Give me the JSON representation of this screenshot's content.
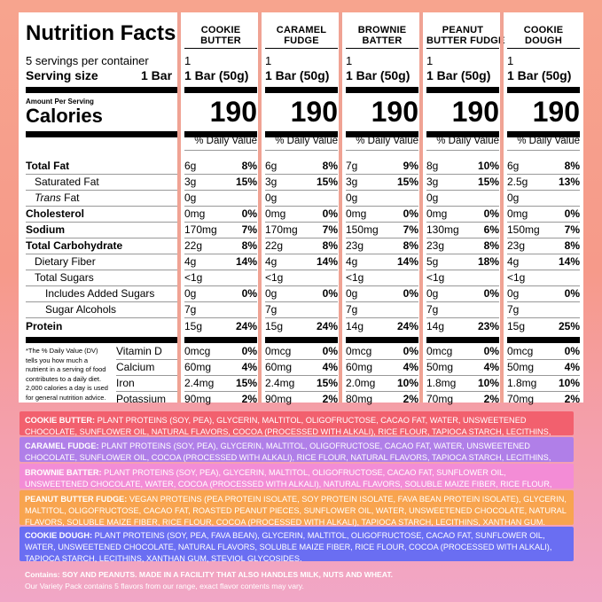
{
  "title": "Nutrition Facts",
  "servings_per_container": "5 servings per container",
  "serving_size_label": "Serving size",
  "serving_size_value": "1 Bar",
  "amount_per_serving": "Amount Per Serving",
  "calories_label": "Calories",
  "pct_daily_value": "% Daily Value",
  "footnote": [
    "*The % Daily Value (DV)",
    "tells you how much a",
    "nutrient in a serving of food",
    "contributes to a daily diet.",
    "2,000 calories a day is used",
    "for general nutrition advice."
  ],
  "rows": [
    {
      "label": "Total Fat",
      "bold": true
    },
    {
      "label": "Saturated Fat",
      "bold": false
    },
    {
      "label": "Trans Fat",
      "bold": false
    },
    {
      "label": "Cholesterol",
      "bold": true
    },
    {
      "label": "Sodium",
      "bold": true
    },
    {
      "label": "Total Carbohydrate",
      "bold": true
    },
    {
      "label": "Dietary Fiber",
      "bold": false
    },
    {
      "label": "Total Sugars",
      "bold": false
    },
    {
      "label": "Includes Added Sugars",
      "bold": false
    },
    {
      "label": "Sugar Alcohols",
      "bold": false
    },
    {
      "label": "Protein",
      "bold": true
    }
  ],
  "trans_prefix": "Trans",
  "trans_suffix": " Fat",
  "micros": [
    "Vitamin D",
    "Calcium",
    "Iron",
    "Potassium"
  ],
  "flavors": [
    {
      "name": [
        "COOKIE",
        "BUTTER"
      ],
      "servings": "1",
      "serving": "1 Bar (50g)",
      "calories": "190",
      "values": [
        [
          "6g",
          "8%"
        ],
        [
          "3g",
          "15%"
        ],
        [
          "0g",
          ""
        ],
        [
          "0mg",
          "0%"
        ],
        [
          "170mg",
          "7%"
        ],
        [
          "22g",
          "8%"
        ],
        [
          "4g",
          "14%"
        ],
        [
          "<1g",
          ""
        ],
        [
          "0g",
          "0%"
        ],
        [
          "7g",
          ""
        ],
        [
          "15g",
          "24%"
        ]
      ],
      "micros": [
        [
          "0mcg",
          "0%"
        ],
        [
          "60mg",
          "4%"
        ],
        [
          "2.4mg",
          "15%"
        ],
        [
          "90mg",
          "2%"
        ]
      ]
    },
    {
      "name": [
        "CARAMEL",
        "FUDGE"
      ],
      "servings": "1",
      "serving": "1 Bar (50g)",
      "calories": "190",
      "values": [
        [
          "6g",
          "8%"
        ],
        [
          "3g",
          "15%"
        ],
        [
          "0g",
          ""
        ],
        [
          "0mg",
          "0%"
        ],
        [
          "170mg",
          "7%"
        ],
        [
          "22g",
          "8%"
        ],
        [
          "4g",
          "14%"
        ],
        [
          "<1g",
          ""
        ],
        [
          "0g",
          "0%"
        ],
        [
          "7g",
          ""
        ],
        [
          "15g",
          "24%"
        ]
      ],
      "micros": [
        [
          "0mcg",
          "0%"
        ],
        [
          "60mg",
          "4%"
        ],
        [
          "2.4mg",
          "15%"
        ],
        [
          "90mg",
          "2%"
        ]
      ]
    },
    {
      "name": [
        "BROWNIE",
        "BATTER"
      ],
      "servings": "1",
      "serving": "1 Bar (50g)",
      "calories": "190",
      "values": [
        [
          "7g",
          "9%"
        ],
        [
          "3g",
          "15%"
        ],
        [
          "0g",
          ""
        ],
        [
          "0mg",
          "0%"
        ],
        [
          "150mg",
          "7%"
        ],
        [
          "23g",
          "8%"
        ],
        [
          "4g",
          "14%"
        ],
        [
          "<1g",
          ""
        ],
        [
          "0g",
          "0%"
        ],
        [
          "7g",
          ""
        ],
        [
          "14g",
          "24%"
        ]
      ],
      "micros": [
        [
          "0mcg",
          "0%"
        ],
        [
          "60mg",
          "4%"
        ],
        [
          "2.0mg",
          "10%"
        ],
        [
          "80mg",
          "2%"
        ]
      ]
    },
    {
      "name": [
        "PEANUT",
        "BUTTER FUDGE"
      ],
      "servings": "1",
      "serving": "1 Bar (50g)",
      "calories": "190",
      "values": [
        [
          "8g",
          "10%"
        ],
        [
          "3g",
          "15%"
        ],
        [
          "0g",
          ""
        ],
        [
          "0mg",
          "0%"
        ],
        [
          "130mg",
          "6%"
        ],
        [
          "23g",
          "8%"
        ],
        [
          "5g",
          "18%"
        ],
        [
          "<1g",
          ""
        ],
        [
          "0g",
          "0%"
        ],
        [
          "7g",
          ""
        ],
        [
          "14g",
          "23%"
        ]
      ],
      "micros": [
        [
          "0mcg",
          "0%"
        ],
        [
          "50mg",
          "4%"
        ],
        [
          "1.8mg",
          "10%"
        ],
        [
          "70mg",
          "2%"
        ]
      ]
    },
    {
      "name": [
        "COOKIE",
        "DOUGH"
      ],
      "servings": "1",
      "serving": "1 Bar (50g)",
      "calories": "190",
      "values": [
        [
          "6g",
          "8%"
        ],
        [
          "2.5g",
          "13%"
        ],
        [
          "0g",
          ""
        ],
        [
          "0mg",
          "0%"
        ],
        [
          "150mg",
          "7%"
        ],
        [
          "23g",
          "8%"
        ],
        [
          "4g",
          "14%"
        ],
        [
          "<1g",
          ""
        ],
        [
          "0g",
          "0%"
        ],
        [
          "7g",
          ""
        ],
        [
          "15g",
          "25%"
        ]
      ],
      "micros": [
        [
          "0mcg",
          "0%"
        ],
        [
          "50mg",
          "4%"
        ],
        [
          "1.8mg",
          "10%"
        ],
        [
          "70mg",
          "2%"
        ]
      ]
    }
  ],
  "ingredients": [
    {
      "name": "COOKIE BUTTER:",
      "text": " PLANT PROTEINS (SOY, PEA), GLYCERIN, MALTITOL, OLIGOFRUCTOSE, CACAO FAT, WATER, UNSWEETENED CHOCOLATE, SUNFLOWER OIL, NATURAL FLAVORS, COCOA (PROCESSED WITH ALKALI), RICE FLOUR, TAPIOCA STARCH, LECITHINS, SALT.",
      "color": "#f2606e"
    },
    {
      "name": "CARAMEL FUDGE:",
      "text": " PLANT PROTEINS (SOY, PEA), GLYCERIN, MALTITOL, OLIGOFRUCTOSE, CACAO FAT, WATER, UNSWEETENED CHOCOLATE, SUNFLOWER OIL, COCOA (PROCESSED WITH ALKALI), RICE FLOUR, NATURAL FLAVORS, TAPIOCA STARCH, LECITHINS, SALT.",
      "color": "#b07fe8"
    },
    {
      "name": "BROWNIE BATTER:",
      "text": " PLANT PROTEINS (SOY, PEA), GLYCERIN, MALTITOL, OLIGOFRUCTOSE, CACAO FAT, SUNFLOWER OIL, UNSWEETENED CHOCOLATE, WATER, COCOA (PROCESSED WITH ALKALI), NATURAL FLAVORS, SOLUBLE MAIZE FIBER, RICE FLOUR, TAPIOCA STARCH, LECITHINS, XANTHAN GUM.",
      "color": "#f38cd6"
    },
    {
      "name": "PEANUT BUTTER FUDGE:",
      "text": " VEGAN PROTEINS (PEA PROTEIN ISOLATE, SOY PROTEIN ISOLATE, FAVA BEAN PROTEIN ISOLATE), GLYCERIN, MALTITOL, OLIGOFRUCTOSE, CACAO FAT, ROASTED PEANUT PIECES, SUNFLOWER OIL, WATER, UNSWEETENED CHOCOLATE, NATURAL FLAVORS, SOLUBLE MAIZE FIBER, RICE FLOUR, COCOA (PROCESSED WITH ALKALI), TAPIOCA STARCH, LECITHINS, XANTHAN GUM.",
      "color": "#f8a44f"
    },
    {
      "name": "COOKIE DOUGH:",
      "text": " PLANT PROTEINS (SOY, PEA, FAVA BEAN), GLYCERIN, MALTITOL, OLIGOFRUCTOSE, CACAO FAT, SUNFLOWER OIL, WATER, UNSWEETENED CHOCOLATE, NATURAL FLAVORS, SOLUBLE MAIZE FIBER, RICE FLOUR, COCOA (PROCESSED WITH ALKALI), TAPIOCA STARCH, LECITHINS, XANTHAN GUM, STEVIOL GLYCOSIDES.",
      "color": "#6a6ef2"
    }
  ],
  "contains": "Contains: SOY AND PEANUTS. MADE IN A FACILITY THAT ALSO HANDLES MILK, NUTS AND WHEAT.",
  "variety_note": "Our Variety Pack contains 5 flavors from our range, exact flavor contents may vary."
}
